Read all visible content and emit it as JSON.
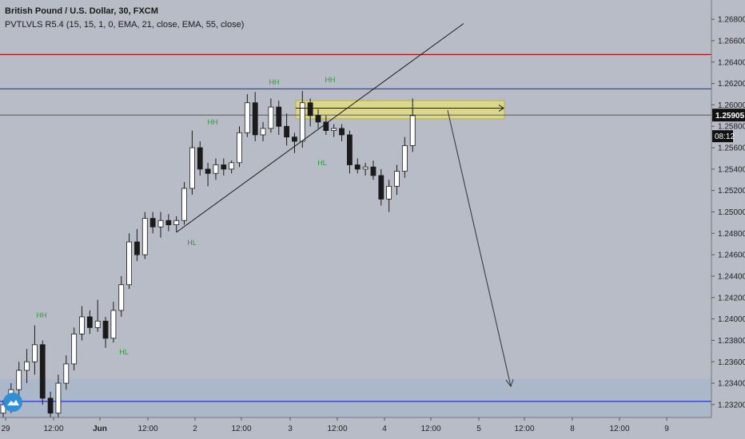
{
  "header": {
    "symbol_title": "British Pound / U.S. Dollar, 30, FXCM",
    "indicator_line": "PVTLVLS R5.4 (15, 15, 1, 0, EMA, 21, close, EMA, 55, close)"
  },
  "colors": {
    "background": "#b8bcc6",
    "up_candle": "#ffffff",
    "down_candle": "#1b1b1b",
    "red_level": "#b01515",
    "blue_level": "#2233dd",
    "zone_yellow": "#e6e27a",
    "zone_blue": "#a7b7cb",
    "pivot_label": "#2b9a3c"
  },
  "chart_data": {
    "type": "candlestick",
    "y_axis_ticks": [
      "1.26800",
      "1.26600",
      "1.26400",
      "1.26200",
      "1.26000",
      "1.25800",
      "1.25600",
      "1.25400",
      "1.25200",
      "1.25000",
      "1.24800",
      "1.24600",
      "1.24400",
      "1.24200",
      "1.24000",
      "1.23800",
      "1.23600",
      "1.23400",
      "1.23200"
    ],
    "x_axis_ticks": [
      "29",
      "12:00",
      "Jun",
      "12:00",
      "2",
      "12:00",
      "3",
      "12:00",
      "4",
      "12:00",
      "5",
      "12:00",
      "8",
      "12:00",
      "9"
    ],
    "ylim": [
      1.2308,
      1.2698
    ],
    "current_price_label": "1.25905",
    "current_price": 1.25905,
    "countdown_label": "08:12",
    "horizontal_levels": [
      {
        "price": 1.2647,
        "color": "red"
      },
      {
        "price": 1.2615,
        "color": "blue"
      },
      {
        "price": 1.2323,
        "color": "blue"
      }
    ],
    "zones": [
      {
        "color": "yellow",
        "price_top": 1.2604,
        "price_bottom": 1.2587,
        "start": "3",
        "end": "5 12:00"
      },
      {
        "color": "blue",
        "price_top": 1.2344,
        "price_bottom": 1.2308,
        "start": "29",
        "end": "9"
      }
    ],
    "pivots": [
      {
        "label": "HH",
        "time_index": 4,
        "price": 1.2394
      },
      {
        "label": "HL",
        "time_index": 13,
        "price": 1.2373
      },
      {
        "label": "HH",
        "time_index": 24,
        "price": 1.2576
      },
      {
        "label": "HL",
        "time_index": 22,
        "price": 1.2481
      },
      {
        "label": "HH",
        "time_index": 32,
        "price": 1.2612
      },
      {
        "label": "HH",
        "time_index": 38,
        "price": 1.2613
      },
      {
        "label": "HL",
        "time_index": 37,
        "price": 1.2555
      }
    ],
    "trendline": {
      "from": {
        "time_index": 22,
        "price": 1.2481
      },
      "to": {
        "time_index": 53,
        "price": 1.2635
      }
    },
    "projection_arrow": {
      "from": {
        "time_index": 52,
        "price": 1.2595
      },
      "to": {
        "time_index": 59,
        "price": 1.2337
      }
    },
    "measure_arrow": {
      "from": {
        "time_index": 34,
        "price": 1.2597
      },
      "to": {
        "time_index": 58,
        "price": 1.2597
      }
    },
    "candles": [
      [
        1.2312,
        1.2324,
        1.2305,
        1.232
      ],
      [
        1.232,
        1.234,
        1.2312,
        1.2334
      ],
      [
        1.2334,
        1.236,
        1.2326,
        1.2352
      ],
      [
        1.2352,
        1.2372,
        1.234,
        1.236
      ],
      [
        1.236,
        1.2394,
        1.2348,
        1.2376
      ],
      [
        1.2376,
        1.238,
        1.232,
        1.2326
      ],
      [
        1.2326,
        1.2332,
        1.2306,
        1.2312
      ],
      [
        1.2312,
        1.2348,
        1.2308,
        1.234
      ],
      [
        1.234,
        1.2366,
        1.2334,
        1.2358
      ],
      [
        1.2358,
        1.2392,
        1.2352,
        1.2386
      ],
      [
        1.2386,
        1.2412,
        1.238,
        1.2402
      ],
      [
        1.2402,
        1.2408,
        1.2386,
        1.2392
      ],
      [
        1.2392,
        1.2418,
        1.2388,
        1.2398
      ],
      [
        1.2398,
        1.2402,
        1.2373,
        1.2382
      ],
      [
        1.2382,
        1.2416,
        1.2378,
        1.2408
      ],
      [
        1.2408,
        1.244,
        1.2402,
        1.2432
      ],
      [
        1.2432,
        1.248,
        1.2428,
        1.2472
      ],
      [
        1.2472,
        1.2484,
        1.2454,
        1.246
      ],
      [
        1.246,
        1.25,
        1.2456,
        1.2494
      ],
      [
        1.2494,
        1.25,
        1.248,
        1.2486
      ],
      [
        1.2486,
        1.25,
        1.2476,
        1.2492
      ],
      [
        1.2492,
        1.2498,
        1.2482,
        1.2488
      ],
      [
        1.2488,
        1.2496,
        1.2481,
        1.2492
      ],
      [
        1.2492,
        1.2528,
        1.2488,
        1.2522
      ],
      [
        1.2522,
        1.2576,
        1.2516,
        1.256
      ],
      [
        1.256,
        1.2566,
        1.2534,
        1.254
      ],
      [
        1.254,
        1.2546,
        1.2524,
        1.2536
      ],
      [
        1.2536,
        1.255,
        1.253,
        1.2544
      ],
      [
        1.2544,
        1.255,
        1.2534,
        1.254
      ],
      [
        1.254,
        1.2548,
        1.2536,
        1.2546
      ],
      [
        1.2546,
        1.258,
        1.2542,
        1.2574
      ],
      [
        1.2574,
        1.261,
        1.257,
        1.2602
      ],
      [
        1.2602,
        1.2612,
        1.2566,
        1.2572
      ],
      [
        1.2572,
        1.2584,
        1.2566,
        1.2578
      ],
      [
        1.2578,
        1.2606,
        1.2574,
        1.2598
      ],
      [
        1.2598,
        1.2604,
        1.2572,
        1.258
      ],
      [
        1.258,
        1.2592,
        1.2562,
        1.257
      ],
      [
        1.257,
        1.2574,
        1.2555,
        1.2566
      ],
      [
        1.2566,
        1.2613,
        1.256,
        1.2602
      ],
      [
        1.2602,
        1.2606,
        1.258,
        1.259
      ],
      [
        1.259,
        1.2596,
        1.2578,
        1.2584
      ],
      [
        1.2584,
        1.259,
        1.2572,
        1.2576
      ],
      [
        1.2576,
        1.2582,
        1.257,
        1.2578
      ],
      [
        1.2578,
        1.2582,
        1.2566,
        1.2572
      ],
      [
        1.2572,
        1.2576,
        1.2536,
        1.2544
      ],
      [
        1.2544,
        1.255,
        1.2536,
        1.254
      ],
      [
        1.254,
        1.2546,
        1.2534,
        1.2542
      ],
      [
        1.2542,
        1.2548,
        1.253,
        1.2534
      ],
      [
        1.2534,
        1.254,
        1.2506,
        1.2512
      ],
      [
        1.2512,
        1.253,
        1.25,
        1.2524
      ],
      [
        1.2524,
        1.2544,
        1.2516,
        1.2538
      ],
      [
        1.2538,
        1.257,
        1.2532,
        1.2562
      ],
      [
        1.2562,
        1.2606,
        1.2556,
        1.259
      ]
    ]
  }
}
